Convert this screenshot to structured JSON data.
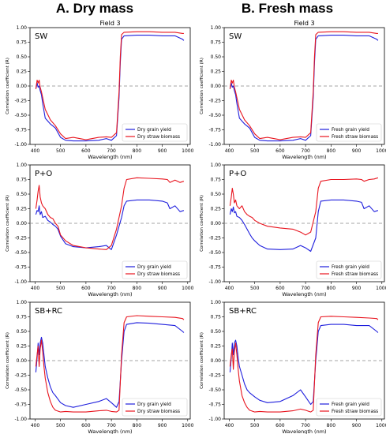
{
  "column_titles": [
    "A. Dry mass",
    "B. Fresh mass"
  ],
  "axes": {
    "xlabel": "Wavelength (nm)",
    "ylabel": "Correlation coefficient (R)",
    "xticks": [
      400,
      500,
      600,
      700,
      800,
      900,
      1000
    ],
    "yticks": [
      -1.0,
      -0.75,
      -0.5,
      -0.25,
      0.0,
      0.25,
      0.5,
      0.75,
      1.0
    ],
    "xlim": [
      380,
      1010
    ],
    "ylim": [
      -1.0,
      1.0
    ],
    "zero_line": "dashed"
  },
  "colors": {
    "grain": "#1f1fdd",
    "straw": "#e8141e",
    "zero": "#888888"
  },
  "chart_data": [
    {
      "type": "line",
      "column": "A",
      "row": 0,
      "header": "Field 3",
      "panel_label": "SW",
      "xlabel": "Wavelength (nm)",
      "ylabel": "Correlation coefficient (R)",
      "legend": "lower-right",
      "series": [
        {
          "name": "Dry grain yield",
          "color": "#1f1fdd",
          "x": [
            403,
            408,
            412,
            416,
            420,
            425,
            430,
            440,
            460,
            480,
            500,
            520,
            550,
            600,
            650,
            680,
            700,
            720,
            730,
            735,
            740,
            750,
            800,
            850,
            900,
            950,
            980,
            985
          ],
          "y": [
            -0.05,
            0.05,
            -0.02,
            0.0,
            -0.08,
            -0.15,
            -0.3,
            -0.55,
            -0.65,
            -0.72,
            -0.88,
            -0.93,
            -0.94,
            -0.94,
            -0.93,
            -0.9,
            -0.93,
            -0.85,
            -0.2,
            0.4,
            0.8,
            0.86,
            0.87,
            0.87,
            0.86,
            0.86,
            0.8,
            0.78
          ]
        },
        {
          "name": "Dry straw biomass",
          "color": "#e8141e",
          "x": [
            403,
            408,
            412,
            416,
            420,
            425,
            430,
            440,
            460,
            480,
            500,
            520,
            550,
            600,
            650,
            680,
            700,
            720,
            730,
            735,
            740,
            750,
            800,
            850,
            900,
            950,
            980,
            985
          ],
          "y": [
            -0.05,
            0.1,
            0.05,
            0.1,
            -0.02,
            -0.1,
            -0.2,
            -0.4,
            -0.58,
            -0.68,
            -0.82,
            -0.9,
            -0.88,
            -0.92,
            -0.88,
            -0.87,
            -0.88,
            -0.8,
            -0.1,
            0.5,
            0.88,
            0.92,
            0.93,
            0.93,
            0.92,
            0.92,
            0.9,
            0.9
          ]
        }
      ]
    },
    {
      "type": "line",
      "column": "B",
      "row": 0,
      "header": "Field 3",
      "panel_label": "SW",
      "xlabel": "Wavelength (nm)",
      "ylabel": "Correlation coefficient (R)",
      "legend": "lower-right",
      "series": [
        {
          "name": "Fresh grain yield",
          "color": "#1f1fdd",
          "x": [
            403,
            408,
            412,
            416,
            420,
            425,
            430,
            440,
            460,
            480,
            500,
            520,
            550,
            600,
            650,
            680,
            700,
            720,
            730,
            735,
            740,
            750,
            800,
            850,
            900,
            950,
            980,
            985
          ],
          "y": [
            -0.05,
            0.05,
            -0.02,
            0.0,
            -0.08,
            -0.15,
            -0.3,
            -0.55,
            -0.65,
            -0.72,
            -0.88,
            -0.93,
            -0.94,
            -0.94,
            -0.93,
            -0.9,
            -0.93,
            -0.85,
            -0.2,
            0.4,
            0.8,
            0.86,
            0.87,
            0.87,
            0.86,
            0.86,
            0.8,
            0.78
          ]
        },
        {
          "name": "Fresh straw biomass",
          "color": "#e8141e",
          "x": [
            403,
            408,
            412,
            416,
            420,
            425,
            430,
            440,
            460,
            480,
            500,
            520,
            550,
            600,
            650,
            680,
            700,
            720,
            730,
            735,
            740,
            750,
            800,
            850,
            900,
            950,
            980,
            985
          ],
          "y": [
            -0.05,
            0.1,
            0.05,
            0.1,
            -0.02,
            -0.1,
            -0.2,
            -0.4,
            -0.58,
            -0.68,
            -0.82,
            -0.9,
            -0.88,
            -0.92,
            -0.88,
            -0.87,
            -0.88,
            -0.8,
            -0.1,
            0.5,
            0.88,
            0.92,
            0.93,
            0.93,
            0.92,
            0.92,
            0.9,
            0.9
          ]
        }
      ]
    },
    {
      "type": "line",
      "column": "A",
      "row": 1,
      "header": "",
      "panel_label": "P+O",
      "xlabel": "Wavelength (nm)",
      "ylabel": "Correlation coefficient (R)",
      "legend": "lower-right",
      "series": [
        {
          "name": "Dry grain yield",
          "color": "#1f1fdd",
          "x": [
            403,
            408,
            412,
            416,
            420,
            425,
            430,
            440,
            450,
            460,
            470,
            480,
            490,
            500,
            520,
            550,
            600,
            650,
            680,
            700,
            720,
            740,
            750,
            760,
            800,
            850,
            900,
            920,
            930,
            950,
            970,
            985
          ],
          "y": [
            0.15,
            0.22,
            0.2,
            0.3,
            0.15,
            0.2,
            0.1,
            0.12,
            0.05,
            0.02,
            -0.02,
            -0.05,
            -0.1,
            -0.22,
            -0.35,
            -0.4,
            -0.42,
            -0.4,
            -0.38,
            -0.45,
            -0.2,
            0.1,
            0.3,
            0.38,
            0.4,
            0.4,
            0.38,
            0.35,
            0.25,
            0.3,
            0.2,
            0.22
          ]
        },
        {
          "name": "Dry straw biomass",
          "color": "#e8141e",
          "x": [
            403,
            408,
            412,
            416,
            420,
            425,
            430,
            440,
            450,
            460,
            470,
            480,
            490,
            500,
            520,
            550,
            600,
            650,
            680,
            700,
            720,
            740,
            750,
            760,
            800,
            850,
            900,
            920,
            930,
            950,
            970,
            985
          ],
          "y": [
            0.25,
            0.4,
            0.55,
            0.65,
            0.45,
            0.35,
            0.3,
            0.25,
            0.15,
            0.1,
            0.08,
            0.0,
            -0.05,
            -0.2,
            -0.3,
            -0.38,
            -0.42,
            -0.44,
            -0.45,
            -0.38,
            -0.1,
            0.3,
            0.6,
            0.75,
            0.78,
            0.77,
            0.76,
            0.75,
            0.7,
            0.74,
            0.7,
            0.72
          ]
        }
      ]
    },
    {
      "type": "line",
      "column": "B",
      "row": 1,
      "header": "",
      "panel_label": "P+O",
      "xlabel": "Wavelength (nm)",
      "ylabel": "Correlation coefficient (R)",
      "legend": "lower-right",
      "series": [
        {
          "name": "Fresh grain yield",
          "color": "#1f1fdd",
          "x": [
            403,
            408,
            412,
            416,
            420,
            425,
            430,
            440,
            450,
            460,
            470,
            480,
            490,
            500,
            520,
            550,
            600,
            650,
            680,
            700,
            720,
            740,
            750,
            760,
            800,
            850,
            900,
            920,
            930,
            950,
            970,
            985
          ],
          "y": [
            0.15,
            0.25,
            0.2,
            0.28,
            0.18,
            0.2,
            0.12,
            0.1,
            0.05,
            -0.02,
            -0.1,
            -0.18,
            -0.25,
            -0.3,
            -0.38,
            -0.44,
            -0.45,
            -0.44,
            -0.38,
            -0.42,
            -0.48,
            -0.25,
            0.2,
            0.38,
            0.4,
            0.4,
            0.38,
            0.36,
            0.25,
            0.3,
            0.2,
            0.22
          ]
        },
        {
          "name": "Fresh straw biomass",
          "color": "#e8141e",
          "x": [
            403,
            408,
            412,
            416,
            420,
            425,
            430,
            440,
            450,
            460,
            470,
            480,
            490,
            500,
            520,
            550,
            600,
            650,
            680,
            700,
            720,
            740,
            750,
            760,
            800,
            850,
            900,
            920,
            930,
            950,
            970,
            985
          ],
          "y": [
            0.3,
            0.45,
            0.6,
            0.5,
            0.35,
            0.4,
            0.3,
            0.25,
            0.3,
            0.2,
            0.15,
            0.12,
            0.1,
            0.05,
            0.0,
            -0.05,
            -0.08,
            -0.1,
            -0.15,
            -0.2,
            -0.15,
            0.2,
            0.6,
            0.72,
            0.75,
            0.75,
            0.76,
            0.75,
            0.72,
            0.75,
            0.76,
            0.78
          ]
        }
      ]
    },
    {
      "type": "line",
      "column": "A",
      "row": 2,
      "header": "",
      "panel_label": "SB+RC",
      "xlabel": "Wavelength (nm)",
      "ylabel": "Correlation coefficient (R)",
      "legend": "lower-right",
      "series": [
        {
          "name": "Dry grain yield",
          "color": "#1f1fdd",
          "x": [
            403,
            408,
            412,
            416,
            420,
            425,
            430,
            435,
            440,
            450,
            460,
            470,
            480,
            500,
            520,
            550,
            600,
            650,
            680,
            700,
            720,
            730,
            740,
            750,
            760,
            800,
            850,
            900,
            950,
            980,
            985
          ],
          "y": [
            -0.2,
            0.05,
            0.3,
            0.1,
            0.3,
            0.4,
            0.3,
            0.1,
            -0.1,
            -0.3,
            -0.45,
            -0.55,
            -0.6,
            -0.72,
            -0.77,
            -0.8,
            -0.75,
            -0.7,
            -0.65,
            -0.72,
            -0.8,
            -0.7,
            0.0,
            0.5,
            0.62,
            0.65,
            0.64,
            0.62,
            0.6,
            0.5,
            0.48
          ]
        },
        {
          "name": "Dry straw biomass",
          "color": "#e8141e",
          "x": [
            403,
            408,
            412,
            416,
            420,
            425,
            430,
            435,
            440,
            450,
            460,
            470,
            480,
            500,
            520,
            550,
            600,
            650,
            680,
            700,
            720,
            730,
            740,
            750,
            760,
            800,
            850,
            900,
            950,
            980,
            985
          ],
          "y": [
            -0.1,
            0.1,
            0.25,
            -0.1,
            0.2,
            0.35,
            0.15,
            -0.1,
            -0.3,
            -0.55,
            -0.7,
            -0.8,
            -0.85,
            -0.88,
            -0.87,
            -0.88,
            -0.88,
            -0.86,
            -0.85,
            -0.87,
            -0.88,
            -0.85,
            0.1,
            0.65,
            0.75,
            0.77,
            0.76,
            0.75,
            0.74,
            0.72,
            0.7
          ]
        }
      ]
    },
    {
      "type": "line",
      "column": "B",
      "row": 2,
      "header": "",
      "panel_label": "SB+RC",
      "xlabel": "Wavelength (nm)",
      "ylabel": "Correlation coefficient (R)",
      "legend": "lower-right",
      "series": [
        {
          "name": "Fresh grain yield",
          "color": "#1f1fdd",
          "x": [
            403,
            408,
            412,
            416,
            420,
            425,
            430,
            435,
            440,
            450,
            460,
            470,
            480,
            500,
            520,
            550,
            600,
            650,
            680,
            700,
            720,
            730,
            740,
            750,
            760,
            800,
            850,
            900,
            950,
            980,
            985
          ],
          "y": [
            -0.2,
            0.05,
            0.3,
            0.1,
            0.3,
            0.35,
            0.25,
            0.05,
            -0.1,
            -0.25,
            -0.4,
            -0.5,
            -0.55,
            -0.62,
            -0.68,
            -0.72,
            -0.7,
            -0.6,
            -0.5,
            -0.62,
            -0.75,
            -0.7,
            0.0,
            0.5,
            0.6,
            0.62,
            0.62,
            0.6,
            0.6,
            0.5,
            0.48
          ]
        },
        {
          "name": "Fresh straw biomass",
          "color": "#e8141e",
          "x": [
            403,
            408,
            412,
            416,
            420,
            425,
            430,
            435,
            440,
            450,
            460,
            470,
            480,
            500,
            520,
            550,
            600,
            650,
            680,
            700,
            720,
            730,
            740,
            750,
            760,
            800,
            850,
            900,
            950,
            980,
            985
          ],
          "y": [
            -0.1,
            0.1,
            0.2,
            -0.15,
            0.15,
            0.3,
            0.1,
            -0.15,
            -0.35,
            -0.6,
            -0.72,
            -0.8,
            -0.85,
            -0.88,
            -0.87,
            -0.88,
            -0.88,
            -0.86,
            -0.83,
            -0.85,
            -0.88,
            -0.85,
            0.1,
            0.65,
            0.75,
            0.76,
            0.75,
            0.74,
            0.73,
            0.72,
            0.7
          ]
        }
      ]
    }
  ]
}
